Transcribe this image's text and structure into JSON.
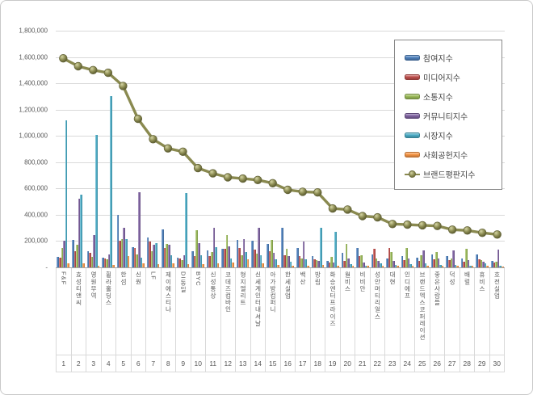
{
  "chart_data": {
    "type": "bar+line",
    "title": "",
    "xlabel": "",
    "ylabel": "",
    "grid": true,
    "legend_position": "top-right",
    "y_axis": {
      "min": 0,
      "max": 1800000,
      "step": 200000,
      "tick_labels": [
        "1,800,000",
        "1,600,000",
        "1,400,000",
        "1,200,000",
        "1,000,000",
        "800,000",
        "600,000",
        "400,000",
        "200,000"
      ],
      "zero_label": "-"
    },
    "categories": [
      "F&F",
      "효성티앤씨",
      "영원무역",
      "휠라홀딩스",
      "한섬",
      "신원",
      "LF",
      "제이에스티나",
      "DI동일",
      "BYC",
      "신성통상",
      "코데즈컴바인",
      "형지엘리트",
      "신세계인터내셔날",
      "아가방컴퍼니",
      "한세실업",
      "백산",
      "방림",
      "화승엔터프라이즈",
      "월비스",
      "비비안",
      "성안머티리얼스",
      "대현",
      "인디에프",
      "브랜드엑스코퍼레이션",
      "좋은사람들",
      "덕성",
      "배럴",
      "휴비스",
      "호전실업"
    ],
    "ranks": [
      "1",
      "2",
      "3",
      "4",
      "5",
      "6",
      "7",
      "8",
      "9",
      "10",
      "11",
      "12",
      "13",
      "14",
      "15",
      "16",
      "17",
      "18",
      "19",
      "20",
      "21",
      "22",
      "23",
      "24",
      "25",
      "26",
      "27",
      "28",
      "29",
      "30"
    ],
    "series": [
      {
        "name": "참여지수",
        "color": "#4F81BD",
        "values": [
          80000,
          210000,
          120000,
          75000,
          400000,
          155000,
          230000,
          290000,
          75000,
          120000,
          130000,
          140000,
          210000,
          200000,
          180000,
          300000,
          150000,
          85000,
          50000,
          110000,
          150000,
          100000,
          70000,
          85000,
          75000,
          100000,
          85000,
          65000,
          100000,
          50000
        ]
      },
      {
        "name": "미디어지수",
        "color": "#C0504D",
        "values": [
          75000,
          120000,
          110000,
          65000,
          205000,
          145000,
          195000,
          145000,
          65000,
          85000,
          85000,
          140000,
          150000,
          135000,
          120000,
          90000,
          85000,
          60000,
          40000,
          50000,
          85000,
          140000,
          145000,
          55000,
          50000,
          60000,
          55000,
          45000,
          60000,
          40000
        ]
      },
      {
        "name": "소통지수",
        "color": "#9BBB59",
        "values": [
          150000,
          175000,
          80000,
          60000,
          215000,
          100000,
          120000,
          180000,
          55000,
          285000,
          115000,
          245000,
          90000,
          105000,
          210000,
          140000,
          70000,
          55000,
          80000,
          180000,
          90000,
          70000,
          115000,
          145000,
          90000,
          115000,
          65000,
          140000,
          55000,
          45000
        ]
      },
      {
        "name": "커뮤니티지수",
        "color": "#8064A2",
        "values": [
          200000,
          520000,
          245000,
          100000,
          300000,
          570000,
          175000,
          170000,
          90000,
          185000,
          300000,
          160000,
          215000,
          300000,
          110000,
          85000,
          195000,
          50000,
          40000,
          70000,
          40000,
          50000,
          50000,
          65000,
          130000,
          70000,
          130000,
          55000,
          45000,
          135000
        ]
      },
      {
        "name": "시장지수",
        "color": "#4BACC6",
        "values": [
          1120000,
          555000,
          1010000,
          1300000,
          215000,
          75000,
          185000,
          90000,
          565000,
          95000,
          155000,
          70000,
          115000,
          95000,
          60000,
          45000,
          60000,
          300000,
          270000,
          25000,
          15000,
          30000,
          20000,
          25000,
          30000,
          20000,
          20000,
          15000,
          30000,
          15000
        ]
      },
      {
        "name": "사회공헌지수",
        "color": "#F79646",
        "values": [
          30000,
          30000,
          15000,
          20000,
          85000,
          30000,
          25000,
          30000,
          25000,
          25000,
          30000,
          35000,
          60000,
          30000,
          20000,
          15000,
          15000,
          20000,
          10000,
          10000,
          10000,
          10000,
          10000,
          10000,
          10000,
          10000,
          10000,
          10000,
          10000,
          8000
        ]
      }
    ],
    "line_series": {
      "name": "브랜드평판지수",
      "color": "#8A8A50",
      "values": [
        1590000,
        1530000,
        1500000,
        1480000,
        1380000,
        1130000,
        975000,
        905000,
        880000,
        755000,
        715000,
        685000,
        675000,
        665000,
        640000,
        590000,
        575000,
        570000,
        448000,
        440000,
        390000,
        380000,
        330000,
        325000,
        320000,
        315000,
        287000,
        281000,
        263000,
        250000
      ]
    }
  }
}
